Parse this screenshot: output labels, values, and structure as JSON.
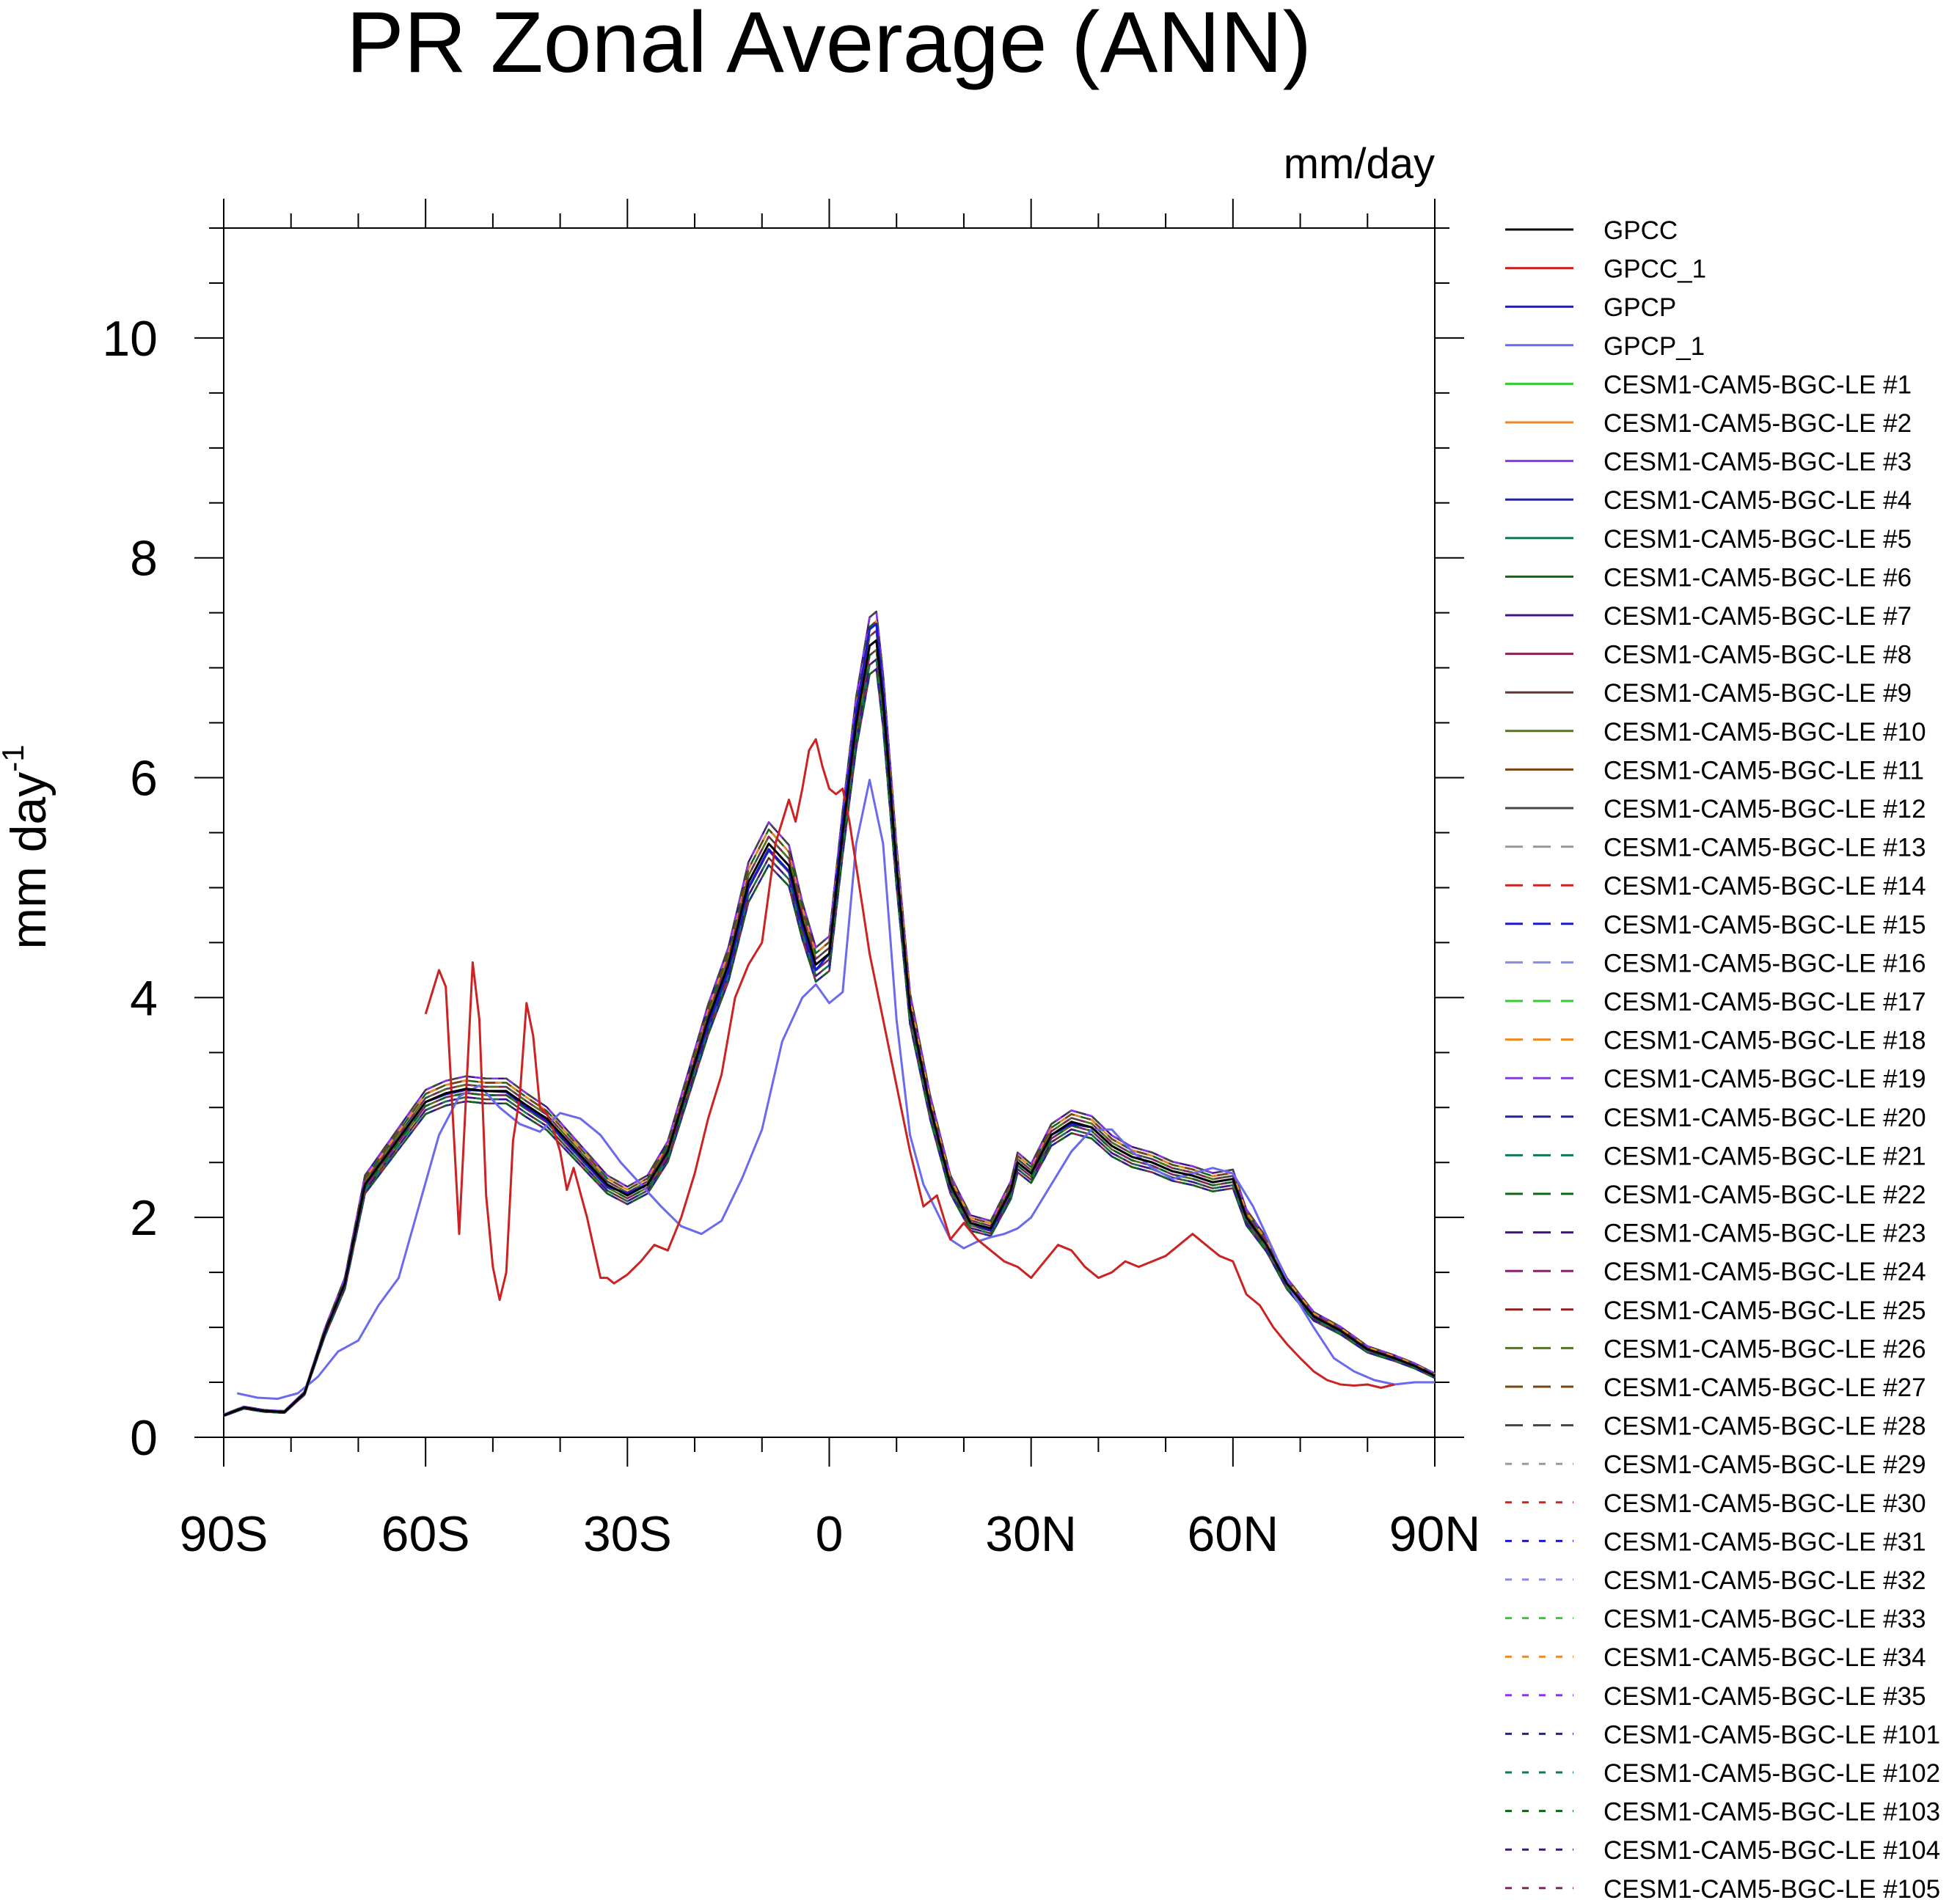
{
  "chart_data": {
    "type": "line",
    "title": "PR Zonal Average (ANN)",
    "units_label": "mm/day",
    "ylabel": "mm day",
    "ylabel_sup": "-1",
    "xlabel": "",
    "xlim": [
      -90,
      90
    ],
    "ylim": [
      0,
      11
    ],
    "x_ticks": [
      {
        "value": -90,
        "label": "90S"
      },
      {
        "value": -60,
        "label": "60S"
      },
      {
        "value": -30,
        "label": "30S"
      },
      {
        "value": 0,
        "label": "0"
      },
      {
        "value": 30,
        "label": "30N"
      },
      {
        "value": 60,
        "label": "60N"
      },
      {
        "value": 90,
        "label": "90N"
      }
    ],
    "y_ticks": [
      {
        "value": 0,
        "label": "0"
      },
      {
        "value": 2,
        "label": "2"
      },
      {
        "value": 4,
        "label": "4"
      },
      {
        "value": 6,
        "label": "6"
      },
      {
        "value": 8,
        "label": "8"
      },
      {
        "value": 10,
        "label": "10"
      }
    ],
    "grid": false,
    "legend_position": "right",
    "series": [
      {
        "name": "GPCC",
        "color": "#000000",
        "dash": "solid",
        "x": [
          -90,
          -87,
          -84,
          -81,
          -78,
          -75,
          -72,
          -69,
          -66,
          -63,
          -60,
          -57,
          -54,
          -51,
          -48,
          -45,
          -42,
          -39,
          -36,
          -33,
          -30,
          -27,
          -24,
          -21,
          -18,
          -15,
          -12,
          -9,
          -6,
          -4,
          -2,
          0,
          2,
          4,
          6,
          7,
          8,
          10,
          12,
          15,
          18,
          21,
          24,
          27,
          28,
          30,
          33,
          36,
          39,
          42,
          45,
          48,
          51,
          54,
          57,
          60,
          62,
          65,
          68,
          72,
          76,
          80,
          84,
          87,
          90
        ],
        "y": [
          0.2,
          0.27,
          0.24,
          0.23,
          0.4,
          0.95,
          1.4,
          2.3,
          2.55,
          2.8,
          3.05,
          3.13,
          3.17,
          3.15,
          3.15,
          3.02,
          2.9,
          2.7,
          2.5,
          2.3,
          2.2,
          2.3,
          2.6,
          3.2,
          3.8,
          4.3,
          5.05,
          5.4,
          5.2,
          4.7,
          4.3,
          4.4,
          5.5,
          6.5,
          7.2,
          7.25,
          6.7,
          5.2,
          3.9,
          3.0,
          2.3,
          1.95,
          1.9,
          2.25,
          2.5,
          2.4,
          2.75,
          2.87,
          2.82,
          2.65,
          2.55,
          2.5,
          2.42,
          2.38,
          2.32,
          2.35,
          2.0,
          1.75,
          1.4,
          1.1,
          0.97,
          0.8,
          0.72,
          0.65,
          0.56
        ]
      },
      {
        "name": "GPCC_1",
        "color": "#cc2222",
        "dash": "solid",
        "x": [
          -60,
          -58,
          -57,
          -55,
          -53,
          -52,
          -51,
          -50,
          -49,
          -48,
          -47,
          -46,
          -45,
          -44,
          -43,
          -42,
          -41,
          -40,
          -39,
          -38,
          -36,
          -34,
          -33,
          -32,
          -30,
          -28,
          -26,
          -24,
          -22,
          -20,
          -18,
          -16,
          -14,
          -12,
          -10,
          -8,
          -6,
          -5,
          -4,
          -3,
          -2,
          -1,
          0,
          1,
          2,
          3,
          4,
          5,
          6,
          8,
          10,
          12,
          14,
          16,
          18,
          20,
          22,
          24,
          26,
          28,
          30,
          32,
          34,
          36,
          38,
          40,
          42,
          44,
          46,
          48,
          50,
          52,
          54,
          56,
          58,
          60,
          62,
          64,
          66,
          68,
          70,
          72,
          74,
          76,
          78,
          80,
          82,
          84
        ],
        "y": [
          3.85,
          4.25,
          4.1,
          1.85,
          4.32,
          3.8,
          2.2,
          1.55,
          1.25,
          1.5,
          2.7,
          3.1,
          3.95,
          3.65,
          3.0,
          2.95,
          2.8,
          2.6,
          2.25,
          2.45,
          2.0,
          1.45,
          1.45,
          1.4,
          1.48,
          1.6,
          1.75,
          1.7,
          2.0,
          2.4,
          2.9,
          3.3,
          4.0,
          4.3,
          4.5,
          5.4,
          5.8,
          5.6,
          5.9,
          6.25,
          6.35,
          6.1,
          5.9,
          5.85,
          5.9,
          5.6,
          5.2,
          4.8,
          4.4,
          3.8,
          3.2,
          2.6,
          2.1,
          2.2,
          1.8,
          1.95,
          1.8,
          1.7,
          1.6,
          1.55,
          1.45,
          1.6,
          1.75,
          1.7,
          1.55,
          1.45,
          1.5,
          1.6,
          1.55,
          1.6,
          1.65,
          1.75,
          1.85,
          1.75,
          1.65,
          1.6,
          1.3,
          1.2,
          1.0,
          0.85,
          0.72,
          0.6,
          0.52,
          0.48,
          0.47,
          0.48,
          0.45,
          0.48
        ]
      },
      {
        "name": "GPCP",
        "color": "#1a1acc",
        "dash": "solid",
        "x": [
          -90,
          -87,
          -84,
          -81,
          -78,
          -75,
          -72,
          -69,
          -66,
          -63,
          -60,
          -57,
          -54,
          -51,
          -48,
          -45,
          -42,
          -39,
          -36,
          -33,
          -30,
          -27,
          -24,
          -21,
          -18,
          -15,
          -12,
          -9,
          -6,
          -4,
          -2,
          0,
          2,
          4,
          6,
          7,
          8,
          10,
          12,
          15,
          18,
          21,
          24,
          27,
          28,
          30,
          33,
          36,
          39,
          42,
          45,
          48,
          51,
          54,
          57,
          60,
          62,
          65,
          68,
          72,
          76,
          80,
          84,
          87,
          90
        ],
        "y": [
          0.2,
          0.27,
          0.24,
          0.23,
          0.4,
          0.95,
          1.4,
          2.3,
          2.55,
          2.8,
          3.05,
          3.12,
          3.16,
          3.15,
          3.14,
          3.0,
          2.88,
          2.68,
          2.48,
          2.28,
          2.22,
          2.3,
          2.6,
          3.2,
          3.75,
          4.25,
          5.0,
          5.35,
          5.15,
          4.65,
          4.25,
          4.4,
          5.6,
          6.6,
          7.35,
          7.4,
          6.8,
          5.2,
          3.9,
          3.0,
          2.3,
          1.95,
          1.88,
          2.25,
          2.5,
          2.4,
          2.75,
          2.85,
          2.82,
          2.65,
          2.55,
          2.5,
          2.42,
          2.38,
          2.32,
          2.35,
          2.0,
          1.75,
          1.4,
          1.1,
          0.97,
          0.8,
          0.72,
          0.65,
          0.56
        ]
      },
      {
        "name": "GPCP_1",
        "color": "#6a6aee",
        "dash": "solid",
        "x": [
          -88,
          -85,
          -82,
          -79,
          -76,
          -73,
          -70,
          -67,
          -64,
          -61,
          -58,
          -55,
          -52,
          -49,
          -46,
          -43,
          -40,
          -37,
          -34,
          -31,
          -28,
          -25,
          -22,
          -19,
          -16,
          -13,
          -10,
          -7,
          -4,
          -2,
          0,
          2,
          4,
          6,
          8,
          10,
          12,
          14,
          16,
          18,
          20,
          22,
          24,
          26,
          28,
          30,
          33,
          36,
          39,
          42,
          45,
          48,
          51,
          54,
          57,
          60,
          63,
          66,
          69,
          72,
          75,
          78,
          81,
          84,
          87,
          90
        ],
        "y": [
          0.4,
          0.36,
          0.35,
          0.4,
          0.55,
          0.78,
          0.88,
          1.2,
          1.45,
          2.1,
          2.75,
          3.1,
          3.2,
          3.0,
          2.85,
          2.78,
          2.95,
          2.9,
          2.75,
          2.5,
          2.3,
          2.1,
          1.92,
          1.85,
          1.97,
          2.35,
          2.8,
          3.6,
          4.0,
          4.12,
          3.95,
          4.05,
          5.4,
          5.98,
          5.4,
          3.8,
          2.75,
          2.3,
          2.05,
          1.8,
          1.72,
          1.78,
          1.82,
          1.85,
          1.9,
          2.0,
          2.3,
          2.6,
          2.8,
          2.8,
          2.6,
          2.45,
          2.35,
          2.4,
          2.45,
          2.4,
          2.1,
          1.7,
          1.3,
          1.0,
          0.72,
          0.6,
          0.52,
          0.48,
          0.5,
          0.5
        ]
      }
    ],
    "ensemble_series": [
      {
        "name": "CESM1-CAM5-BGC-LE #1",
        "color": "#33cc33",
        "dash": "solid"
      },
      {
        "name": "CESM1-CAM5-BGC-LE #2",
        "color": "#ee8822",
        "dash": "solid"
      },
      {
        "name": "CESM1-CAM5-BGC-LE #3",
        "color": "#8833ee",
        "dash": "solid"
      },
      {
        "name": "CESM1-CAM5-BGC-LE #4",
        "color": "#222299",
        "dash": "solid"
      },
      {
        "name": "CESM1-CAM5-BGC-LE #5",
        "color": "#117755",
        "dash": "solid"
      },
      {
        "name": "CESM1-CAM5-BGC-LE #6",
        "color": "#116611",
        "dash": "solid"
      },
      {
        "name": "CESM1-CAM5-BGC-LE #7",
        "color": "#441188",
        "dash": "solid"
      },
      {
        "name": "CESM1-CAM5-BGC-LE #8",
        "color": "#882255",
        "dash": "solid"
      },
      {
        "name": "CESM1-CAM5-BGC-LE #9",
        "color": "#663333",
        "dash": "solid"
      },
      {
        "name": "CESM1-CAM5-BGC-LE #10",
        "color": "#557711",
        "dash": "solid"
      },
      {
        "name": "CESM1-CAM5-BGC-LE #11",
        "color": "#774411",
        "dash": "solid"
      },
      {
        "name": "CESM1-CAM5-BGC-LE #12",
        "color": "#444444",
        "dash": "solid"
      },
      {
        "name": "CESM1-CAM5-BGC-LE #13",
        "color": "#999999",
        "dash": "dashed"
      },
      {
        "name": "CESM1-CAM5-BGC-LE #14",
        "color": "#cc2222",
        "dash": "dashed"
      },
      {
        "name": "CESM1-CAM5-BGC-LE #15",
        "color": "#1a1acc",
        "dash": "dashed"
      },
      {
        "name": "CESM1-CAM5-BGC-LE #16",
        "color": "#8888ee",
        "dash": "dashed"
      },
      {
        "name": "CESM1-CAM5-BGC-LE #17",
        "color": "#33cc33",
        "dash": "dashed"
      },
      {
        "name": "CESM1-CAM5-BGC-LE #18",
        "color": "#ee8822",
        "dash": "dashed"
      },
      {
        "name": "CESM1-CAM5-BGC-LE #19",
        "color": "#8833ee",
        "dash": "dashed"
      },
      {
        "name": "CESM1-CAM5-BGC-LE #20",
        "color": "#222299",
        "dash": "dashed"
      },
      {
        "name": "CESM1-CAM5-BGC-LE #21",
        "color": "#117755",
        "dash": "dashed"
      },
      {
        "name": "CESM1-CAM5-BGC-LE #22",
        "color": "#116611",
        "dash": "dashed"
      },
      {
        "name": "CESM1-CAM5-BGC-LE #23",
        "color": "#441188",
        "dash": "dashed"
      },
      {
        "name": "CESM1-CAM5-BGC-LE #24",
        "color": "#882266",
        "dash": "dashed"
      },
      {
        "name": "CESM1-CAM5-BGC-LE #25",
        "color": "#882222",
        "dash": "dashed"
      },
      {
        "name": "CESM1-CAM5-BGC-LE #26",
        "color": "#557711",
        "dash": "dashed"
      },
      {
        "name": "CESM1-CAM5-BGC-LE #27",
        "color": "#774411",
        "dash": "dashed"
      },
      {
        "name": "CESM1-CAM5-BGC-LE #28",
        "color": "#444444",
        "dash": "dashed"
      },
      {
        "name": "CESM1-CAM5-BGC-LE #29",
        "color": "#999999",
        "dash": "dotted"
      },
      {
        "name": "CESM1-CAM5-BGC-LE #30",
        "color": "#cc2222",
        "dash": "dotted"
      },
      {
        "name": "CESM1-CAM5-BGC-LE #31",
        "color": "#1a1acc",
        "dash": "dotted"
      },
      {
        "name": "CESM1-CAM5-BGC-LE #32",
        "color": "#8888ee",
        "dash": "dotted"
      },
      {
        "name": "CESM1-CAM5-BGC-LE #33",
        "color": "#33cc33",
        "dash": "dotted"
      },
      {
        "name": "CESM1-CAM5-BGC-LE #34",
        "color": "#ee8822",
        "dash": "dotted"
      },
      {
        "name": "CESM1-CAM5-BGC-LE #35",
        "color": "#8833ee",
        "dash": "dotted"
      },
      {
        "name": "CESM1-CAM5-BGC-LE #101",
        "color": "#222299",
        "dash": "dotted"
      },
      {
        "name": "CESM1-CAM5-BGC-LE #102",
        "color": "#117755",
        "dash": "dotted"
      },
      {
        "name": "CESM1-CAM5-BGC-LE #103",
        "color": "#116611",
        "dash": "dotted"
      },
      {
        "name": "CESM1-CAM5-BGC-LE #104",
        "color": "#441188",
        "dash": "dotted"
      },
      {
        "name": "CESM1-CAM5-BGC-LE #105",
        "color": "#882266",
        "dash": "dotted"
      }
    ]
  }
}
